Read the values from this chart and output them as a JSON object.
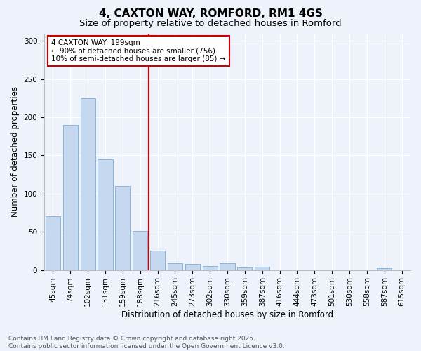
{
  "title": "4, CAXTON WAY, ROMFORD, RM1 4GS",
  "subtitle": "Size of property relative to detached houses in Romford",
  "xlabel": "Distribution of detached houses by size in Romford",
  "ylabel": "Number of detached properties",
  "categories": [
    "45sqm",
    "74sqm",
    "102sqm",
    "131sqm",
    "159sqm",
    "188sqm",
    "216sqm",
    "245sqm",
    "273sqm",
    "302sqm",
    "330sqm",
    "359sqm",
    "387sqm",
    "416sqm",
    "444sqm",
    "473sqm",
    "501sqm",
    "530sqm",
    "558sqm",
    "587sqm",
    "615sqm"
  ],
  "values": [
    70,
    190,
    225,
    145,
    110,
    51,
    25,
    9,
    8,
    5,
    9,
    3,
    4,
    0,
    0,
    0,
    0,
    0,
    0,
    2,
    0
  ],
  "bar_color": "#c5d8f0",
  "bar_edge_color": "#7aadd4",
  "vline_x": 5.5,
  "vline_color": "#cc0000",
  "annotation_text": "4 CAXTON WAY: 199sqm\n← 90% of detached houses are smaller (756)\n10% of semi-detached houses are larger (85) →",
  "annotation_box_color": "#ffffff",
  "annotation_box_edge_color": "#cc0000",
  "ylim": [
    0,
    310
  ],
  "yticks": [
    0,
    50,
    100,
    150,
    200,
    250,
    300
  ],
  "footer_line1": "Contains HM Land Registry data © Crown copyright and database right 2025.",
  "footer_line2": "Contains public sector information licensed under the Open Government Licence v3.0.",
  "background_color": "#eef2fa",
  "title_fontsize": 11,
  "subtitle_fontsize": 9.5,
  "axis_label_fontsize": 8.5,
  "tick_fontsize": 7.5,
  "annotation_fontsize": 7.5,
  "footer_fontsize": 6.5
}
